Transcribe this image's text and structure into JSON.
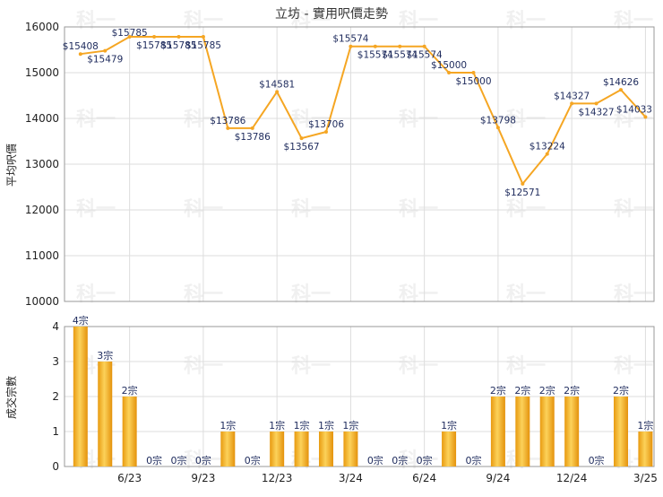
{
  "chart_data": [
    {
      "type": "line",
      "title": "立坊 - 實用呎價走勢",
      "ylabel": "平均呎價",
      "ylim": [
        10000,
        16000
      ],
      "yticks": [
        10000,
        11000,
        12000,
        13000,
        14000,
        15000,
        16000
      ],
      "grid": true,
      "color": "#f5a623",
      "values": [
        15408,
        15479,
        15785,
        15785,
        15785,
        15785,
        13786,
        13786,
        14581,
        13567,
        13706,
        15574,
        15574,
        15574,
        15574,
        15000,
        15000,
        13798,
        12571,
        13224,
        14327,
        14327,
        14626,
        14033
      ],
      "labels": [
        "$15408",
        "$15479",
        "$15785",
        "$15785",
        "$15785",
        "$15785",
        "$13786",
        "$13786",
        "$14581",
        "$13567",
        "$13706",
        "$15574",
        "$15574",
        "$15574",
        "$15574",
        "$15000",
        "$15000",
        "$13798",
        "$12571",
        "$13224",
        "$14327",
        "$14327",
        "$14626",
        "$14033"
      ]
    },
    {
      "type": "bar",
      "ylabel": "成交宗數",
      "ylim": [
        0,
        4
      ],
      "yticks": [
        0,
        1,
        2,
        3,
        4
      ],
      "grid": true,
      "values": [
        4,
        3,
        2,
        0,
        0,
        0,
        1,
        0,
        1,
        1,
        1,
        1,
        0,
        0,
        0,
        1,
        0,
        2,
        2,
        2,
        2,
        0,
        2,
        1
      ],
      "labels": [
        "4宗",
        "3宗",
        "2宗",
        "0宗",
        "0宗",
        "0宗",
        "1宗",
        "0宗",
        "1宗",
        "1宗",
        "1宗",
        "1宗",
        "0宗",
        "0宗",
        "0宗",
        "1宗",
        "0宗",
        "2宗",
        "2宗",
        "2宗",
        "2宗",
        "0宗",
        "2宗",
        "1宗"
      ],
      "categories": [
        "",
        "",
        "6/23",
        "",
        "",
        "9/23",
        "",
        "",
        "12/23",
        "",
        "",
        "3/24",
        "",
        "",
        "6/24",
        "",
        "",
        "9/24",
        "",
        "",
        "12/24",
        "",
        "",
        "3/25"
      ]
    }
  ]
}
